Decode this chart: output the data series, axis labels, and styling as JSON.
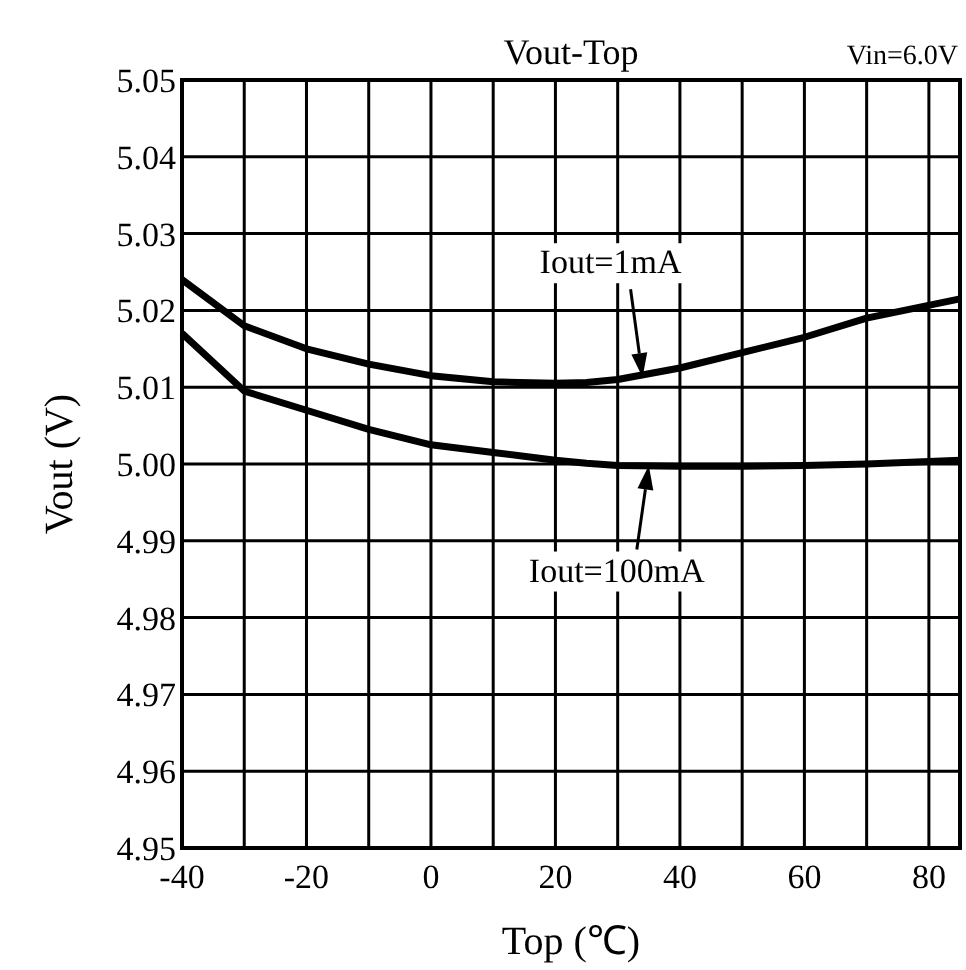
{
  "chart_data": {
    "type": "line",
    "title": "Vout-Top",
    "xlabel": "Top (℃)",
    "ylabel": "Vout (V)",
    "annotations": [
      "Vin=6.0V",
      {
        "text": "Iout=1mA",
        "x": 34,
        "y": 5.0113
      },
      {
        "text": "Iout=100mA",
        "x": 35,
        "y": 4.9998
      }
    ],
    "xlim": [
      -40,
      85
    ],
    "xticks": [
      -40,
      {
        "value": -30,
        "label": null
      },
      -20,
      {
        "value": -10,
        "label": null
      },
      0,
      {
        "value": 10,
        "label": null
      },
      20,
      {
        "value": 30,
        "label": null
      },
      40,
      {
        "value": 50,
        "label": null
      },
      60,
      {
        "value": 70,
        "label": null
      },
      80
    ],
    "ylim": [
      4.95,
      5.05
    ],
    "yticks": [
      4.95,
      4.96,
      4.97,
      4.98,
      4.99,
      {
        "value": 5,
        "label": "5.00"
      },
      5.01,
      5.02,
      5.03,
      5.04,
      5.05
    ],
    "grid": true,
    "line_style": "solid",
    "x": [
      -40,
      -30,
      -20,
      -10,
      0,
      10,
      20,
      25,
      30,
      40,
      50,
      60,
      70,
      85
    ],
    "series": [
      {
        "color": "#000000",
        "values": [
          5.024,
          5.018,
          5.015,
          5.013,
          5.0115,
          5.0107,
          5.0105,
          5.0106,
          5.011,
          5.0125,
          5.0145,
          5.0165,
          5.019,
          5.0215
        ]
      },
      {
        "color": "#000000",
        "values": [
          5.017,
          5.0095,
          5.007,
          5.0045,
          5.0025,
          5.0015,
          5.0005,
          5.0001,
          4.9998,
          4.9997,
          4.9997,
          4.9998,
          5.0,
          5.0005
        ]
      }
    ]
  }
}
